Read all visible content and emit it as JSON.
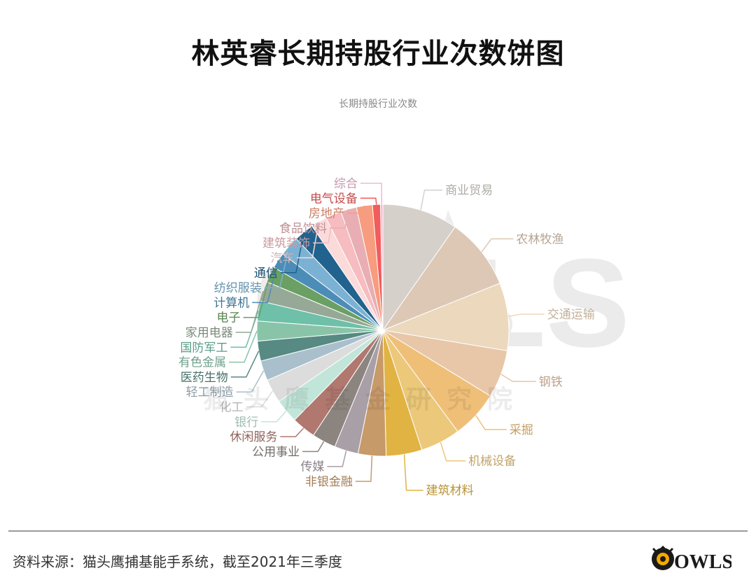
{
  "header": {
    "title": "林英睿长期持股行业次数饼图",
    "source": "资料来源：猫头鹰捕基能手系统，截至2021年三季度"
  },
  "watermark": {
    "text": "猫头鹰基金研究院",
    "logo_text": "OWLS"
  },
  "brand": {
    "logo_text": "OWLS"
  },
  "chart_data": {
    "type": "pie",
    "title": "长期持股行业次数",
    "start": "top",
    "direction": "clockwise",
    "slices": [
      {
        "label": "商业贸易",
        "value": 9.5,
        "color": "#d6d0cb"
      },
      {
        "label": "农林牧渔",
        "value": 9.0,
        "color": "#dcc8b5"
      },
      {
        "label": "交通运输",
        "value": 8.5,
        "color": "#ecd8bd"
      },
      {
        "label": "钢铁",
        "value": 6.0,
        "color": "#e8c6a8"
      },
      {
        "label": "采掘",
        "value": 6.0,
        "color": "#efbf78"
      },
      {
        "label": "机械设备",
        "value": 5.0,
        "color": "#ebc87a"
      },
      {
        "label": "建筑材料",
        "value": 4.5,
        "color": "#e1b343"
      },
      {
        "label": "非银金融",
        "value": 3.5,
        "color": "#c79a6a"
      },
      {
        "label": "传媒",
        "value": 3.0,
        "color": "#a99fa6"
      },
      {
        "label": "公用事业",
        "value": 3.0,
        "color": "#8c857f"
      },
      {
        "label": "休闲服务",
        "value": 3.0,
        "color": "#b0786f"
      },
      {
        "label": "银行",
        "value": 3.0,
        "color": "#c2e5da"
      },
      {
        "label": "化工",
        "value": 3.0,
        "color": "#dcdcdc"
      },
      {
        "label": "轻工制造",
        "value": 2.5,
        "color": "#a9c0cc"
      },
      {
        "label": "医药生物",
        "value": 2.5,
        "color": "#568a83"
      },
      {
        "label": "有色金属",
        "value": 2.5,
        "color": "#89c4a9"
      },
      {
        "label": "国防军工",
        "value": 2.5,
        "color": "#6ec0a8"
      },
      {
        "label": "家用电器",
        "value": 2.5,
        "color": "#96a896"
      },
      {
        "label": "电子",
        "value": 2.0,
        "color": "#6aa063"
      },
      {
        "label": "计算机",
        "value": 2.0,
        "color": "#4c8db7"
      },
      {
        "label": "纺织服装",
        "value": 2.5,
        "color": "#7bb2d3"
      },
      {
        "label": "通信",
        "value": 2.5,
        "color": "#21628e"
      },
      {
        "label": "汽车",
        "value": 2.0,
        "color": "#fbdada"
      },
      {
        "label": "建筑装饰",
        "value": 2.0,
        "color": "#f6bcc0"
      },
      {
        "label": "食品饮料",
        "value": 2.0,
        "color": "#e8aeb3"
      },
      {
        "label": "房地产",
        "value": 2.0,
        "color": "#f79c7e"
      },
      {
        "label": "电气设备",
        "value": 1.0,
        "color": "#f25c5c"
      },
      {
        "label": "综合",
        "value": 0.3,
        "color": "#f3b8d2"
      }
    ]
  }
}
